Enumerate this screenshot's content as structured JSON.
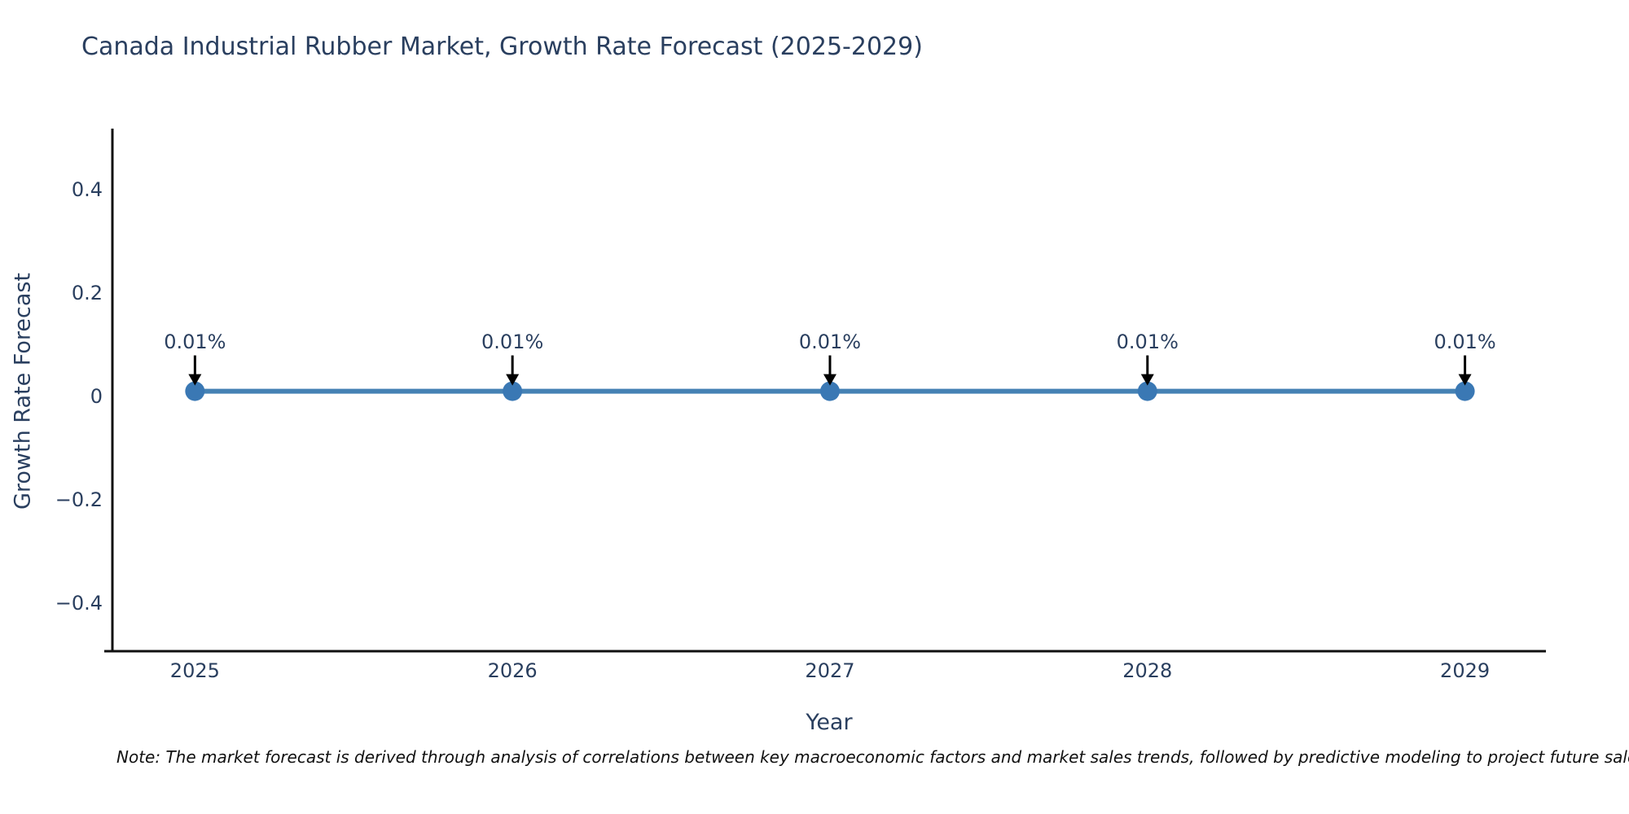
{
  "title": "Canada Industrial Rubber Market, Growth Rate Forecast (2025-2029)",
  "note": "Note: The market forecast is derived through analysis of correlations between key macroeconomic factors and market sales trends, followed by predictive modeling to project future sales.",
  "chart_data": {
    "type": "line",
    "x": [
      2025,
      2026,
      2027,
      2028,
      2029
    ],
    "series": [
      {
        "name": "Growth Rate Forecast",
        "values": [
          0.01,
          0.01,
          0.01,
          0.01,
          0.01
        ]
      }
    ],
    "point_labels": [
      "0.01%",
      "0.01%",
      "0.01%",
      "0.01%",
      "0.01%"
    ],
    "title": "Canada Industrial Rubber Market, Growth Rate Forecast (2025-2029)",
    "xlabel": "Year",
    "ylabel": "Growth Rate Forecast",
    "xtick_labels": [
      "2025",
      "2026",
      "2027",
      "2028",
      "2029"
    ],
    "yticks": [
      0.4,
      0.2,
      0,
      -0.2,
      -0.4
    ],
    "ytick_labels": [
      "0.4",
      "0.2",
      "0",
      "−0.2",
      "−0.4"
    ],
    "xlim": [
      2024.74,
      2029.255
    ],
    "ylim": [
      -0.493,
      0.518
    ],
    "grid": false,
    "legend": false,
    "colors": {
      "line": "#4682b4",
      "marker": "#3a78b4",
      "arrow": "#000000",
      "axis": "#111111",
      "text": "#2a3f5f"
    }
  }
}
